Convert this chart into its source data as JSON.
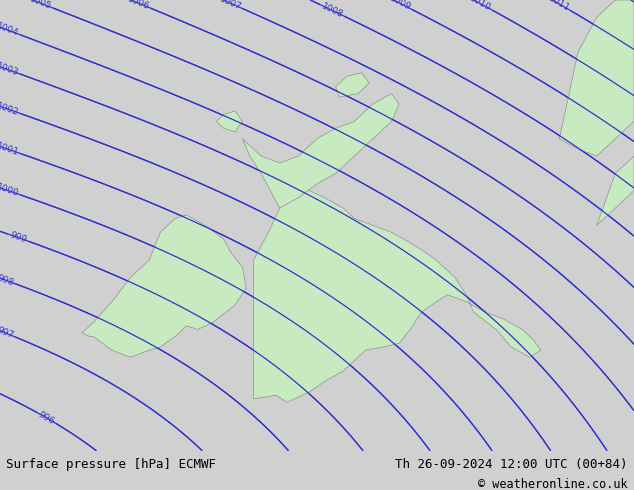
{
  "title_left": "Surface pressure [hPa] ECMWF",
  "title_right": "Th 26-09-2024 12:00 UTC (00+84)",
  "copyright": "© weatheronline.co.uk",
  "bg_color": "#d0d0d0",
  "land_color": "#c8eac0",
  "coast_color": "#909090",
  "isobar_color_blue": "#3333cc",
  "isobar_color_red": "#cc0000",
  "isobar_color_black": "#000000",
  "bottom_text_color": "#000000",
  "pressure_min": 990,
  "pressure_max": 1016,
  "pressure_step": 1,
  "figsize": [
    6.34,
    4.9
  ],
  "dpi": 100,
  "low_lon": -25.0,
  "low_lat": 44.0,
  "low_p": 982.0,
  "high_lon": 15.0,
  "high_lat": 65.0,
  "high_p": 1025.0,
  "lon_min": -12.5,
  "lon_max": 4.5,
  "lat_min": 48.5,
  "lat_max": 61.5
}
